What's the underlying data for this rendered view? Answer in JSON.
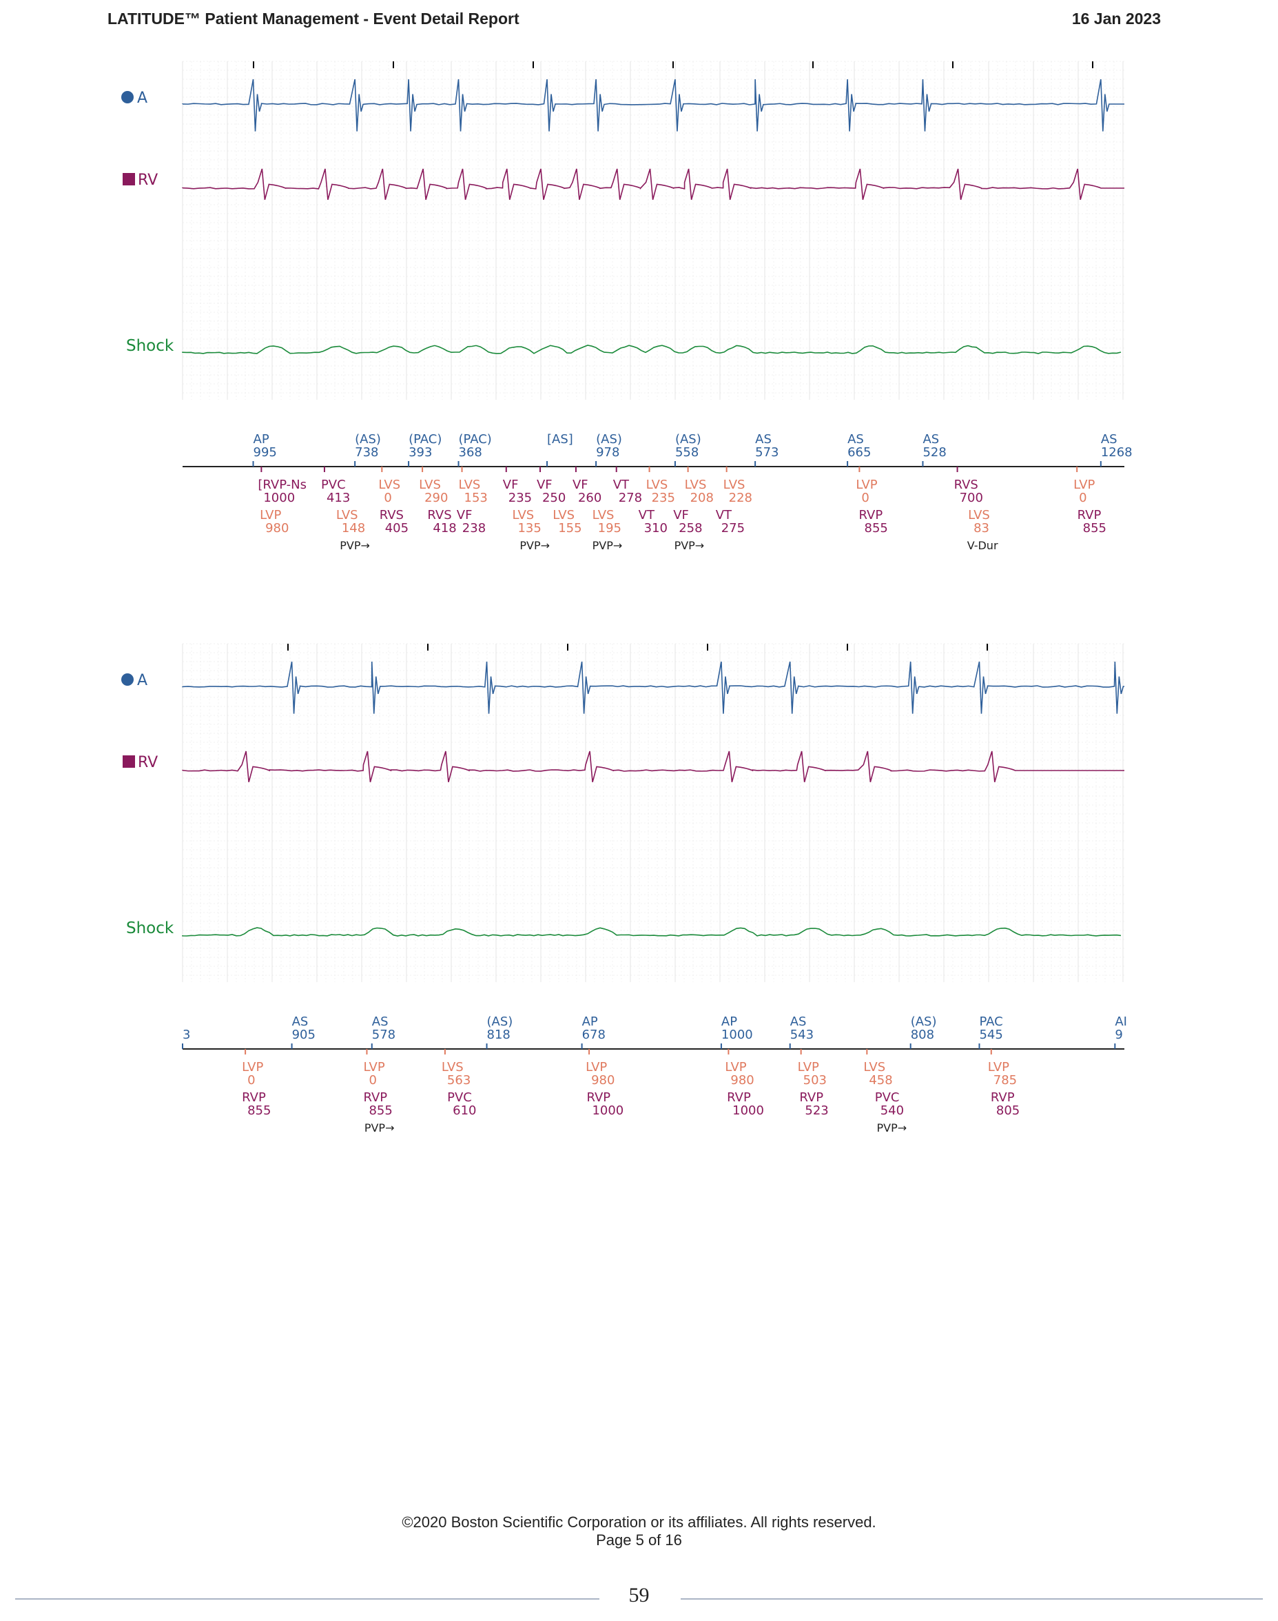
{
  "header": {
    "title": "LATITUDE™ Patient Management - Event Detail Report",
    "date": "16 Jan 2023"
  },
  "colors": {
    "atrial": "#2e5f9a",
    "rv": "#8a1a5c",
    "shock": "#1a8a3a",
    "lv": "#e07a5f",
    "grid": "#e4e4e4",
    "text": "#222222"
  },
  "strips": [
    {
      "channels": {
        "a": "A",
        "rv": "RV",
        "shock": "Shock"
      },
      "atrial_markers": [
        {
          "x": 0.075,
          "l": "AP",
          "v": "995"
        },
        {
          "x": 0.183,
          "l": "(AS)",
          "v": "738"
        },
        {
          "x": 0.24,
          "l": "(PAC)",
          "v": "393"
        },
        {
          "x": 0.293,
          "l": "(PAC)",
          "v": "368"
        },
        {
          "x": 0.387,
          "l": "[AS]",
          "v": ""
        },
        {
          "x": 0.439,
          "l": "(AS)",
          "v": "978"
        },
        {
          "x": 0.523,
          "l": "(AS)",
          "v": "558"
        },
        {
          "x": 0.608,
          "l": "AS",
          "v": "573"
        },
        {
          "x": 0.706,
          "l": "AS",
          "v": "665"
        },
        {
          "x": 0.786,
          "l": "AS",
          "v": "528"
        },
        {
          "x": 0.975,
          "l": "AS",
          "v": "1268"
        }
      ],
      "ventricular_markers": [
        {
          "x": 0.08,
          "l": "[RVP-Ns",
          "v": "1000",
          "c": "rv",
          "row": 0
        },
        {
          "x": 0.147,
          "l": "PVC",
          "v": "413",
          "c": "rv",
          "row": 0
        },
        {
          "x": 0.208,
          "l": "LVS",
          "v": "0",
          "c": "lv",
          "row": 0
        },
        {
          "x": 0.251,
          "l": "LVS",
          "v": "290",
          "c": "lv",
          "row": 0
        },
        {
          "x": 0.293,
          "l": "LVS",
          "v": "153",
          "c": "lv",
          "row": 0
        },
        {
          "x": 0.34,
          "l": "VF",
          "v": "235",
          "c": "rv",
          "row": 0
        },
        {
          "x": 0.376,
          "l": "VF",
          "v": "250",
          "c": "rv",
          "row": 0
        },
        {
          "x": 0.414,
          "l": "VF",
          "v": "260",
          "c": "rv",
          "row": 0
        },
        {
          "x": 0.457,
          "l": "VT",
          "v": "278",
          "c": "rv",
          "row": 0
        },
        {
          "x": 0.492,
          "l": "LVS",
          "v": "235",
          "c": "lv",
          "row": 0
        },
        {
          "x": 0.533,
          "l": "LVS",
          "v": "208",
          "c": "lv",
          "row": 0
        },
        {
          "x": 0.574,
          "l": "LVS",
          "v": "228",
          "c": "lv",
          "row": 0
        },
        {
          "x": 0.715,
          "l": "LVP",
          "v": "0",
          "c": "lv",
          "row": 0
        },
        {
          "x": 0.819,
          "l": "RVS",
          "v": "700",
          "c": "rv",
          "row": 0
        },
        {
          "x": 0.946,
          "l": "LVP",
          "v": "0",
          "c": "lv",
          "row": 0
        },
        {
          "x": 0.082,
          "l": "LVP",
          "v": "980",
          "c": "lv",
          "row": 1
        },
        {
          "x": 0.163,
          "l": "LVS",
          "v": "148",
          "c": "lv",
          "row": 1
        },
        {
          "x": 0.209,
          "l": "RVS",
          "v": "405",
          "c": "rv",
          "row": 1
        },
        {
          "x": 0.26,
          "l": "RVS",
          "v": "418",
          "c": "rv",
          "row": 1
        },
        {
          "x": 0.291,
          "l": "VF",
          "v": "238",
          "c": "rv",
          "row": 1
        },
        {
          "x": 0.35,
          "l": "LVS",
          "v": "135",
          "c": "lv",
          "row": 1
        },
        {
          "x": 0.393,
          "l": "LVS",
          "v": "155",
          "c": "lv",
          "row": 1
        },
        {
          "x": 0.435,
          "l": "LVS",
          "v": "195",
          "c": "lv",
          "row": 1
        },
        {
          "x": 0.484,
          "l": "VT",
          "v": "310",
          "c": "rv",
          "row": 1
        },
        {
          "x": 0.521,
          "l": "VF",
          "v": "258",
          "c": "rv",
          "row": 1
        },
        {
          "x": 0.566,
          "l": "VT",
          "v": "275",
          "c": "rv",
          "row": 1
        },
        {
          "x": 0.718,
          "l": "RVP",
          "v": "855",
          "c": "rv",
          "row": 1
        },
        {
          "x": 0.834,
          "l": "LVS",
          "v": "83",
          "c": "lv",
          "row": 1
        },
        {
          "x": 0.95,
          "l": "RVP",
          "v": "855",
          "c": "rv",
          "row": 1
        }
      ],
      "annotations": [
        {
          "x": 0.167,
          "t": "PVP→"
        },
        {
          "x": 0.358,
          "t": "PVP→"
        },
        {
          "x": 0.435,
          "t": "PVP→"
        },
        {
          "x": 0.522,
          "t": "PVP→"
        },
        {
          "x": 0.833,
          "t": "V-Dur"
        }
      ]
    },
    {
      "channels": {
        "a": "A",
        "rv": "RV",
        "shock": "Shock"
      },
      "atrial_markers": [
        {
          "x": 0.0,
          "l": "",
          "v": "3"
        },
        {
          "x": 0.116,
          "l": "AS",
          "v": "905"
        },
        {
          "x": 0.201,
          "l": "AS",
          "v": "578"
        },
        {
          "x": 0.323,
          "l": "(AS)",
          "v": "818"
        },
        {
          "x": 0.424,
          "l": "AP",
          "v": "678"
        },
        {
          "x": 0.572,
          "l": "AP",
          "v": "1000"
        },
        {
          "x": 0.645,
          "l": "AS",
          "v": "543"
        },
        {
          "x": 0.773,
          "l": "(AS)",
          "v": "808"
        },
        {
          "x": 0.846,
          "l": "PAC",
          "v": "545"
        },
        {
          "x": 0.99,
          "l": "AI",
          "v": "9"
        }
      ],
      "ventricular_markers": [
        {
          "x": 0.063,
          "l": "LVP",
          "v": "0",
          "c": "lv",
          "row": 0
        },
        {
          "x": 0.192,
          "l": "LVP",
          "v": "0",
          "c": "lv",
          "row": 0
        },
        {
          "x": 0.275,
          "l": "LVS",
          "v": "563",
          "c": "lv",
          "row": 0
        },
        {
          "x": 0.428,
          "l": "LVP",
          "v": "980",
          "c": "lv",
          "row": 0
        },
        {
          "x": 0.576,
          "l": "LVP",
          "v": "980",
          "c": "lv",
          "row": 0
        },
        {
          "x": 0.653,
          "l": "LVP",
          "v": "503",
          "c": "lv",
          "row": 0
        },
        {
          "x": 0.723,
          "l": "LVS",
          "v": "458",
          "c": "lv",
          "row": 0
        },
        {
          "x": 0.855,
          "l": "LVP",
          "v": "785",
          "c": "lv",
          "row": 0
        },
        {
          "x": 0.063,
          "l": "RVP",
          "v": "855",
          "c": "rv",
          "row": 1
        },
        {
          "x": 0.192,
          "l": "RVP",
          "v": "855",
          "c": "rv",
          "row": 1
        },
        {
          "x": 0.281,
          "l": "PVC",
          "v": "610",
          "c": "rv",
          "row": 1
        },
        {
          "x": 0.429,
          "l": "RVP",
          "v": "1000",
          "c": "rv",
          "row": 1
        },
        {
          "x": 0.578,
          "l": "RVP",
          "v": "1000",
          "c": "rv",
          "row": 1
        },
        {
          "x": 0.655,
          "l": "RVP",
          "v": "523",
          "c": "rv",
          "row": 1
        },
        {
          "x": 0.735,
          "l": "PVC",
          "v": "540",
          "c": "rv",
          "row": 1
        },
        {
          "x": 0.858,
          "l": "RVP",
          "v": "805",
          "c": "rv",
          "row": 1
        }
      ],
      "annotations": [
        {
          "x": 0.193,
          "t": "PVP→"
        },
        {
          "x": 0.737,
          "t": "PVP→"
        }
      ]
    }
  ],
  "footer": {
    "copyright": "©2020 Boston Scientific Corporation or its affiliates. All rights reserved.",
    "page": "Page 5 of 16",
    "number": "59"
  }
}
